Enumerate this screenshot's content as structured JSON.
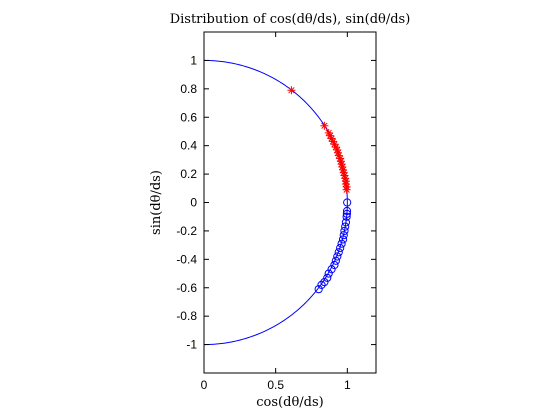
{
  "chart_data": {
    "type": "scatter",
    "title": "Distribution of cos(dθ/ds), sin(dθ/ds)",
    "xlabel": "cos(dθ/ds)",
    "ylabel": "sin(dθ/ds)",
    "xlim": [
      0,
      1.2
    ],
    "ylim": [
      -1.2,
      1.2
    ],
    "xticks": [
      "0",
      "0.5",
      "1"
    ],
    "xtick_values": [
      0,
      0.5,
      1
    ],
    "yticks": [
      "-1",
      "-0.8",
      "-0.6",
      "-0.4",
      "-0.2",
      "0",
      "0.2",
      "0.4",
      "0.6",
      "0.8",
      "1"
    ],
    "ytick_values": [
      -1,
      -0.8,
      -0.6,
      -0.4,
      -0.2,
      0,
      0.2,
      0.4,
      0.6,
      0.8,
      1
    ],
    "grid": false,
    "unit_circle_color": "#0000ff",
    "series": [
      {
        "marker": "asterisk",
        "color": "#ff0000",
        "points": [
          [
            0.61,
            0.79
          ],
          [
            0.84,
            0.54
          ],
          [
            0.87,
            0.49
          ],
          [
            0.88,
            0.47
          ],
          [
            0.89,
            0.45
          ],
          [
            0.9,
            0.43
          ],
          [
            0.91,
            0.41
          ],
          [
            0.92,
            0.39
          ],
          [
            0.93,
            0.37
          ],
          [
            0.935,
            0.35
          ],
          [
            0.94,
            0.33
          ],
          [
            0.95,
            0.31
          ],
          [
            0.955,
            0.29
          ],
          [
            0.96,
            0.27
          ],
          [
            0.965,
            0.25
          ],
          [
            0.97,
            0.23
          ],
          [
            0.975,
            0.21
          ],
          [
            0.98,
            0.19
          ],
          [
            0.985,
            0.17
          ],
          [
            0.99,
            0.15
          ],
          [
            0.99,
            0.13
          ],
          [
            0.995,
            0.11
          ],
          [
            0.995,
            0.09
          ]
        ]
      },
      {
        "marker": "circle",
        "color": "#0000ff",
        "points": [
          [
            0.999,
            0.0
          ],
          [
            0.998,
            -0.06
          ],
          [
            0.997,
            -0.08
          ],
          [
            0.995,
            -0.1
          ],
          [
            0.99,
            -0.14
          ],
          [
            0.985,
            -0.17
          ],
          [
            0.98,
            -0.2
          ],
          [
            0.975,
            -0.23
          ],
          [
            0.97,
            -0.26
          ],
          [
            0.96,
            -0.29
          ],
          [
            0.95,
            -0.32
          ],
          [
            0.94,
            -0.35
          ],
          [
            0.93,
            -0.38
          ],
          [
            0.92,
            -0.41
          ],
          [
            0.91,
            -0.44
          ],
          [
            0.89,
            -0.47
          ],
          [
            0.87,
            -0.5
          ],
          [
            0.86,
            -0.53
          ],
          [
            0.84,
            -0.56
          ],
          [
            0.82,
            -0.58
          ],
          [
            0.8,
            -0.61
          ]
        ]
      }
    ]
  }
}
